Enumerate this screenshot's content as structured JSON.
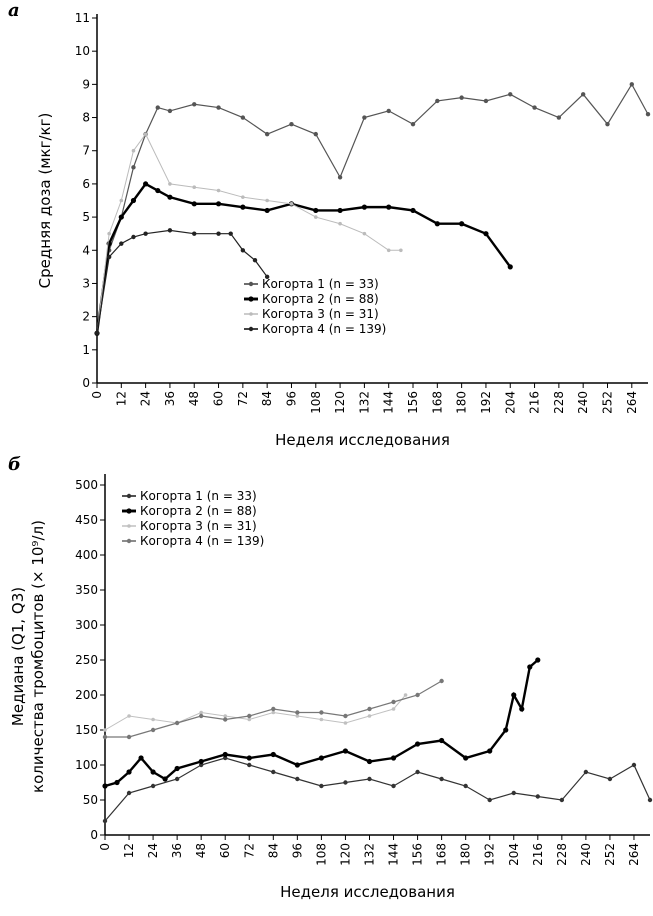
{
  "chart_data": [
    {
      "type": "line",
      "panel": "а",
      "x_label": "Неделя исследования",
      "y_label": "Средняя  доза (мкг/кг)",
      "xlim": [
        0,
        272
      ],
      "xticks": [
        0,
        12,
        24,
        36,
        48,
        60,
        72,
        84,
        96,
        108,
        120,
        132,
        144,
        156,
        168,
        180,
        192,
        204,
        216,
        228,
        240,
        252,
        264
      ],
      "ylim": [
        0,
        11
      ],
      "yticks": [
        0,
        1,
        2,
        3,
        4,
        5,
        6,
        7,
        8,
        9,
        10,
        11
      ],
      "legend": "bottom-center",
      "series": [
        {
          "name": "Когорта 1 (n = 33)",
          "color": "#555555",
          "x": [
            0,
            6,
            12,
            18,
            24,
            30,
            36,
            48,
            60,
            72,
            84,
            96,
            108,
            120,
            132,
            144,
            156,
            168,
            180,
            192,
            204,
            216,
            228,
            240,
            252,
            264,
            272
          ],
          "values": [
            1.5,
            4,
            5,
            6.5,
            7.5,
            8.3,
            8.2,
            8.4,
            8.3,
            8.0,
            7.5,
            7.8,
            7.5,
            6.2,
            8.0,
            8.2,
            7.8,
            8.5,
            8.6,
            8.5,
            8.7,
            8.3,
            8.0,
            8.7,
            7.8,
            9.0,
            8.1
          ]
        },
        {
          "name": "Когорта 2 (n = 88)",
          "color": "#000000",
          "x": [
            0,
            6,
            12,
            18,
            24,
            30,
            36,
            48,
            60,
            72,
            84,
            96,
            108,
            120,
            132,
            144,
            156,
            168,
            180,
            192,
            204
          ],
          "values": [
            1.5,
            4.2,
            5.0,
            5.5,
            6.0,
            5.8,
            5.6,
            5.4,
            5.4,
            5.3,
            5.2,
            5.4,
            5.2,
            5.2,
            5.3,
            5.3,
            5.2,
            4.8,
            4.8,
            4.5,
            3.5
          ]
        },
        {
          "name": "Когорта 3 (n = 31)",
          "color": "#bbbbbb",
          "x": [
            0,
            6,
            12,
            18,
            24,
            36,
            48,
            60,
            72,
            84,
            96,
            108,
            120,
            132,
            144,
            150
          ],
          "values": [
            1.5,
            4.5,
            5.5,
            7,
            7.5,
            6.0,
            5.9,
            5.8,
            5.6,
            5.5,
            5.4,
            5.0,
            4.8,
            4.5,
            4.0,
            4.0
          ]
        },
        {
          "name": "Когорта 4 (n = 139)",
          "color": "#222222",
          "x": [
            0,
            6,
            12,
            18,
            24,
            36,
            48,
            60,
            66,
            72,
            78,
            84
          ],
          "values": [
            1.5,
            3.8,
            4.2,
            4.4,
            4.5,
            4.6,
            4.5,
            4.5,
            4.5,
            4.0,
            3.7,
            3.2
          ]
        }
      ]
    },
    {
      "type": "line",
      "panel": "б",
      "x_label": "Неделя исследования",
      "y_label": [
        "Медиана (Q1, Q3)",
        "количества тромбоцитов (× 10⁹/л)"
      ],
      "xlim": [
        0,
        272
      ],
      "xticks": [
        0,
        12,
        24,
        36,
        48,
        60,
        72,
        84,
        96,
        108,
        120,
        132,
        144,
        156,
        168,
        180,
        192,
        204,
        216,
        228,
        240,
        252,
        264
      ],
      "ylim": [
        0,
        510
      ],
      "yticks": [
        0,
        50,
        100,
        150,
        200,
        250,
        300,
        350,
        400,
        450,
        500
      ],
      "legend": "top-left",
      "series": [
        {
          "name": "Когорта 1 (n = 33)",
          "color": "#333333",
          "x": [
            0,
            12,
            24,
            36,
            48,
            60,
            72,
            84,
            96,
            108,
            120,
            132,
            144,
            156,
            168,
            180,
            192,
            204,
            216,
            228,
            240,
            252,
            264,
            272
          ],
          "values": [
            20,
            60,
            70,
            80,
            100,
            110,
            100,
            90,
            80,
            70,
            75,
            80,
            70,
            90,
            80,
            70,
            50,
            60,
            55,
            50,
            90,
            80,
            100,
            50
          ]
        },
        {
          "name": "Когорта 2 (n = 88)",
          "color": "#000000",
          "x": [
            0,
            6,
            12,
            18,
            24,
            30,
            36,
            48,
            60,
            72,
            84,
            96,
            108,
            120,
            132,
            144,
            156,
            168,
            180,
            192,
            200,
            204,
            208,
            212,
            216
          ],
          "values": [
            70,
            75,
            90,
            110,
            90,
            80,
            95,
            105,
            115,
            110,
            115,
            100,
            110,
            120,
            105,
            110,
            130,
            135,
            110,
            120,
            150,
            200,
            180,
            240,
            250
          ]
        },
        {
          "name": "Когорта 3 (n = 31)",
          "color": "#c0c0c0",
          "x": [
            0,
            12,
            24,
            36,
            48,
            60,
            72,
            84,
            96,
            108,
            120,
            132,
            144,
            150
          ],
          "values": [
            150,
            170,
            165,
            160,
            175,
            170,
            165,
            175,
            170,
            165,
            160,
            170,
            180,
            200
          ]
        },
        {
          "name": "Когорта 4 (n = 139)",
          "color": "#777777",
          "x": [
            0,
            12,
            24,
            36,
            48,
            60,
            72,
            84,
            96,
            108,
            120,
            132,
            144,
            156,
            168
          ],
          "values": [
            140,
            140,
            150,
            160,
            170,
            165,
            170,
            180,
            175,
            175,
            170,
            180,
            190,
            200,
            220
          ]
        }
      ]
    }
  ]
}
